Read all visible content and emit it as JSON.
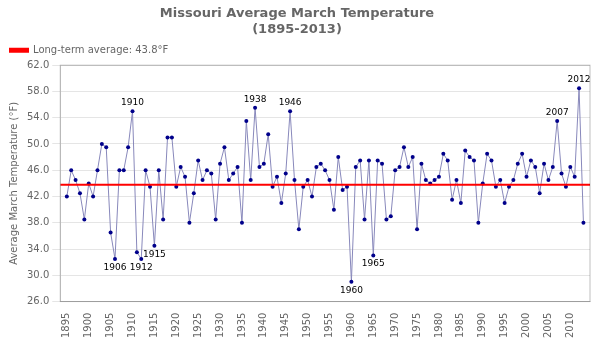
{
  "chart_data": {
    "type": "line",
    "title": "Missouri Average March Temperature\n(1895-2013)",
    "ylabel": "Average March Temperature (°F)",
    "x": [
      1895,
      1896,
      1897,
      1898,
      1899,
      1900,
      1901,
      1902,
      1903,
      1904,
      1905,
      1906,
      1907,
      1908,
      1909,
      1910,
      1911,
      1912,
      1913,
      1914,
      1915,
      1916,
      1917,
      1918,
      1919,
      1920,
      1921,
      1922,
      1923,
      1924,
      1925,
      1926,
      1927,
      1928,
      1929,
      1930,
      1931,
      1932,
      1933,
      1934,
      1935,
      1936,
      1937,
      1938,
      1939,
      1940,
      1941,
      1942,
      1943,
      1944,
      1945,
      1946,
      1947,
      1948,
      1949,
      1950,
      1951,
      1952,
      1953,
      1954,
      1955,
      1956,
      1957,
      1958,
      1959,
      1960,
      1961,
      1962,
      1963,
      1964,
      1965,
      1966,
      1967,
      1968,
      1969,
      1970,
      1971,
      1972,
      1973,
      1974,
      1975,
      1976,
      1977,
      1978,
      1979,
      1980,
      1981,
      1982,
      1983,
      1984,
      1985,
      1986,
      1987,
      1988,
      1989,
      1990,
      1991,
      1992,
      1993,
      1994,
      1995,
      1996,
      1997,
      1998,
      1999,
      2000,
      2001,
      2002,
      2003,
      2004,
      2005,
      2006,
      2007,
      2008,
      2009,
      2010,
      2011,
      2012,
      2013
    ],
    "series": [
      {
        "color": "#8888BB",
        "marker": "circle",
        "colors": [
          "#00008B",
          "#00008B",
          "#00008B",
          "#00008B",
          "#00008B",
          "#00008B",
          "#00008B",
          "#00008B",
          "#00008B",
          "#00008B",
          "#00008B",
          "#00008B",
          "#00008B",
          "#00008B",
          "#00008B",
          "#00008B",
          "#00008B",
          "#00008B",
          "#00008B",
          "#00008B",
          "#00008B",
          "#00008B",
          "#00008B",
          "#00008B",
          "#00008B",
          "#00008B",
          "#00008B",
          "#00008B",
          "#00008B",
          "#00008B",
          "#00008B",
          "#00008B",
          "#00008B",
          "#00008B",
          "#00008B",
          "#00008B",
          "#00008B",
          "#00008B",
          "#00008B",
          "#00008B",
          "#00008B",
          "#00008B",
          "#00008B",
          "#00008B",
          "#00008B",
          "#00008B",
          "#00008B",
          "#00008B",
          "#00008B",
          "#00008B",
          "#00008B",
          "#00008B",
          "#00008B",
          "#00008B",
          "#00008B",
          "#00008B",
          "#00008B",
          "#00008B",
          "#00008B",
          "#00008B",
          "#00008B",
          "#00008B",
          "#00008B",
          "#00008B",
          "#00008B",
          "#00008B",
          "#00008B",
          "#00008B",
          "#00008B",
          "#00008B",
          "#00008B",
          "#00008B",
          "#00008B",
          "#00008B",
          "#00008B",
          "#00008B",
          "#00008B",
          "#00008B",
          "#00008B",
          "#00008B",
          "#00008B",
          "#00008B",
          "#00008B",
          "#00008B",
          "#00008B",
          "#00008B",
          "#00008B",
          "#00008B",
          "#00008B",
          "#00008B",
          "#00008B",
          "#00008B",
          "#00008B",
          "#00008B",
          "#00008B",
          "#00008B",
          "#00008B",
          "#00008B",
          "#00008B",
          "#00008B",
          "#00008B",
          "#00008B",
          "#00008B",
          "#00008B",
          "#00008B",
          "#00008B",
          "#00008B",
          "#00008B",
          "#00008B",
          "#00008B",
          "#00008B",
          "#00008B",
          "#00008B",
          "#00008B",
          "#00008B",
          "#00008B",
          "#00008B",
          "#00008B",
          "#00008B"
        ],
        "values": [
          42.0,
          46.0,
          44.5,
          42.5,
          38.5,
          44.0,
          42.0,
          46.0,
          50.0,
          49.5,
          36.5,
          32.5,
          46.0,
          46.0,
          49.5,
          55.0,
          33.5,
          32.5,
          46.0,
          43.5,
          34.5,
          46.0,
          38.5,
          51.0,
          51.0,
          43.5,
          46.5,
          45.0,
          38.0,
          42.5,
          47.5,
          44.5,
          46.0,
          45.5,
          38.5,
          47.0,
          49.5,
          44.5,
          45.5,
          46.5,
          38.0,
          53.5,
          44.5,
          55.5,
          46.5,
          47.0,
          51.5,
          43.5,
          45.0,
          41.0,
          45.5,
          55.0,
          44.5,
          37.0,
          43.5,
          44.5,
          42.0,
          46.5,
          47.0,
          46.0,
          44.5,
          40.0,
          48.0,
          43.0,
          43.5,
          29.0,
          46.5,
          47.5,
          38.5,
          47.5,
          33.0,
          47.5,
          47.0,
          38.5,
          39.0,
          46.0,
          46.5,
          49.5,
          46.5,
          48.0,
          37.0,
          47.0,
          44.5,
          44.0,
          44.5,
          45.0,
          48.5,
          47.5,
          41.5,
          44.5,
          41.0,
          49.0,
          48.0,
          47.5,
          38.0,
          44.0,
          48.5,
          47.5,
          43.5,
          44.5,
          41.0,
          43.5,
          44.5,
          47.0,
          48.5,
          45.0,
          47.5,
          46.5,
          42.5,
          47.0,
          44.5,
          46.5,
          53.5,
          45.5,
          43.5,
          46.5,
          45.0,
          58.5,
          38.0
        ]
      }
    ],
    "reference_line": {
      "name": "Long-term average: 43.8°F",
      "value": 43.8,
      "color": "red"
    },
    "annotations": [
      {
        "text": "1906",
        "x": 1906,
        "y": 32.5
      },
      {
        "text": "1910",
        "x": 1910,
        "y": 55.0
      },
      {
        "text": "1912",
        "x": 1912,
        "y": 32.5
      },
      {
        "text": "1915",
        "x": 1915,
        "y": 34.5
      },
      {
        "text": "1938",
        "x": 1938,
        "y": 55.5
      },
      {
        "text": "1946",
        "x": 1946,
        "y": 55.0
      },
      {
        "text": "1960",
        "x": 1960,
        "y": 29.0
      },
      {
        "text": "1965",
        "x": 1965,
        "y": 33.0
      },
      {
        "text": "2007",
        "x": 2007,
        "y": 53.5
      },
      {
        "text": "2012",
        "x": 2012,
        "y": 58.5
      }
    ],
    "xlim": [
      1893.5,
      2014.5
    ],
    "xticks": [
      1895,
      1900,
      1905,
      1910,
      1915,
      1920,
      1925,
      1930,
      1935,
      1940,
      1945,
      1950,
      1955,
      1960,
      1965,
      1970,
      1975,
      1980,
      1985,
      1990,
      1995,
      2000,
      2005,
      2010
    ],
    "ylim": [
      26.0,
      62.0
    ],
    "yticks": [
      {
        "value": 26.0,
        "label": "26.0"
      },
      {
        "value": 30.0,
        "label": "30.0"
      },
      {
        "value": 34.0,
        "label": "34.0"
      },
      {
        "value": 38.0,
        "label": "38.0"
      },
      {
        "value": 42.0,
        "label": "42.0"
      },
      {
        "value": 46.0,
        "label": "46.0"
      },
      {
        "value": 50.0,
        "label": "50.0"
      },
      {
        "value": 54.0,
        "label": "54.0"
      },
      {
        "value": 58.0,
        "label": "58.0"
      },
      {
        "value": 62.0,
        "label": "62.0"
      }
    ],
    "grid": "y",
    "legend": "upper left"
  }
}
